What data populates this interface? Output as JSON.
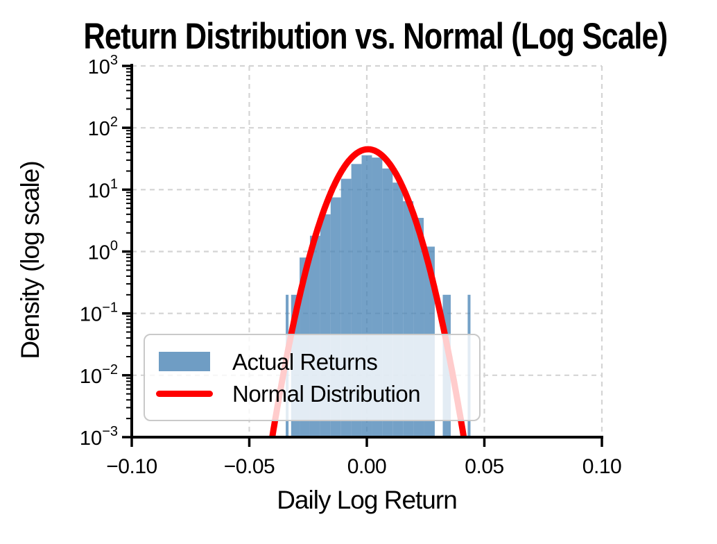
{
  "title": "Return Distribution vs. Normal (Log Scale)",
  "x_axis": {
    "label": "Daily Log Return",
    "tick_labels": [
      "−0.10",
      "−0.05",
      "0.00",
      "0.05",
      "0.10"
    ],
    "tick_values": [
      -0.1,
      -0.05,
      0.0,
      0.05,
      0.1
    ]
  },
  "y_axis": {
    "label": "Density (log scale)",
    "scale": "log",
    "tick_exponents": [
      3,
      2,
      1,
      0,
      -1,
      -2,
      -3
    ]
  },
  "legend": {
    "items": [
      {
        "label": "Actual Returns",
        "marker": "patch",
        "color": "#4682B4"
      },
      {
        "label": "Normal Distribution",
        "marker": "line",
        "color": "#FF0000"
      }
    ]
  },
  "colors": {
    "histogram_fill": "#4682B4",
    "histogram_alpha": 0.75,
    "normal_curve": "#FF0000",
    "grid": "#d4d4d4",
    "axis": "#000000",
    "legend_border": "#c9c9c9",
    "background": "#FFFFFF"
  },
  "chart_data": {
    "type": "histogram+line",
    "title": "Return Distribution vs. Normal (Log Scale)",
    "xlabel": "Daily Log Return",
    "ylabel": "Density (log scale)",
    "x_range": [
      -0.1,
      0.1
    ],
    "y_scale": "log",
    "y_exp_range": [
      -3,
      3
    ],
    "grid": true,
    "legend_position": "lower left",
    "series": [
      {
        "name": "Actual Returns",
        "type": "histogram_density",
        "bars": [
          {
            "x0": -0.0345,
            "x1": -0.0333,
            "density": 0.2
          },
          {
            "x0": -0.0322,
            "x1": -0.0286,
            "density": 0.2
          },
          {
            "x0": -0.0286,
            "x1": -0.0242,
            "density": 0.8
          },
          {
            "x0": -0.0242,
            "x1": -0.0198,
            "density": 1.8
          },
          {
            "x0": -0.0198,
            "x1": -0.0154,
            "density": 4.0
          },
          {
            "x0": -0.0154,
            "x1": -0.011,
            "density": 7.5
          },
          {
            "x0": -0.011,
            "x1": -0.0066,
            "density": 15
          },
          {
            "x0": -0.0066,
            "x1": -0.0022,
            "density": 26
          },
          {
            "x0": -0.0022,
            "x1": 0.0022,
            "density": 36
          },
          {
            "x0": 0.0022,
            "x1": 0.0066,
            "density": 33
          },
          {
            "x0": 0.0066,
            "x1": 0.011,
            "density": 22
          },
          {
            "x0": 0.011,
            "x1": 0.0154,
            "density": 13
          },
          {
            "x0": 0.0154,
            "x1": 0.0198,
            "density": 6.5
          },
          {
            "x0": 0.0198,
            "x1": 0.0242,
            "density": 3.5
          },
          {
            "x0": 0.0242,
            "x1": 0.0289,
            "density": 1.2
          },
          {
            "x0": 0.0323,
            "x1": 0.0357,
            "density": 0.2
          },
          {
            "x0": 0.0429,
            "x1": 0.0441,
            "density": 0.2
          }
        ]
      },
      {
        "name": "Normal Distribution",
        "type": "normal_pdf_curve",
        "mean": 0.0005,
        "std": 0.0088,
        "peak_density": 45
      }
    ]
  }
}
